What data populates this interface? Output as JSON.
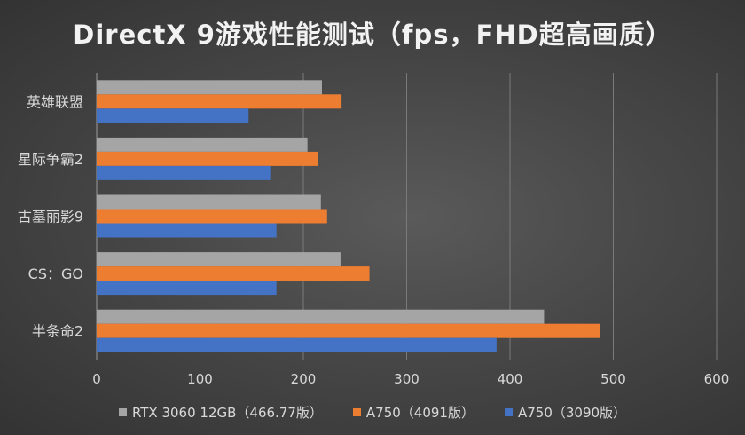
{
  "chart_data": {
    "type": "bar",
    "orientation": "horizontal",
    "title": "DirectX 9游戏性能测试（fps，FHD超高画质）",
    "categories": [
      "英雄联盟",
      "星际争霸2",
      "古墓丽影9",
      "CS：GO",
      "半条命2"
    ],
    "series": [
      {
        "name": "RTX 3060 12GB（466.77版）",
        "color": "#a5a5a5",
        "values": [
          218,
          204,
          217,
          236,
          433
        ]
      },
      {
        "name": "A750（4091版）",
        "color": "#ed7d31",
        "values": [
          237,
          214,
          223,
          264,
          487
        ]
      },
      {
        "name": "A750（3090版）",
        "color": "#4472c4",
        "values": [
          147,
          168,
          174,
          174,
          387
        ]
      }
    ],
    "xlim": [
      0,
      600
    ],
    "xticks": [
      0,
      100,
      200,
      300,
      400,
      500,
      600
    ],
    "grid": "vertical",
    "legend_position": "bottom"
  }
}
